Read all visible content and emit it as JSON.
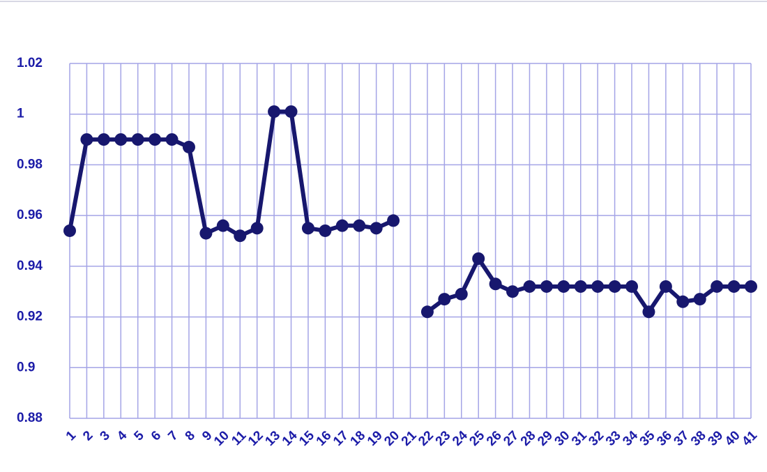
{
  "chart_data": {
    "type": "line",
    "categories": [
      "1",
      "2",
      "3",
      "4",
      "5",
      "6",
      "7",
      "8",
      "9",
      "10",
      "11",
      "12",
      "13",
      "14",
      "15",
      "16",
      "17",
      "18",
      "19",
      "20",
      "21",
      "22",
      "23",
      "24",
      "25",
      "26",
      "27",
      "28",
      "29",
      "30",
      "31",
      "32",
      "33",
      "34",
      "35",
      "36",
      "37",
      "38",
      "39",
      "40",
      "41"
    ],
    "series": [
      {
        "name": "series",
        "color": "#17176e",
        "values": [
          0.954,
          0.99,
          0.99,
          0.99,
          0.99,
          0.99,
          0.99,
          0.987,
          0.953,
          0.956,
          0.952,
          0.955,
          1.001,
          1.001,
          0.955,
          0.954,
          0.956,
          0.956,
          0.955,
          0.958,
          null,
          0.922,
          0.927,
          0.929,
          0.943,
          0.933,
          0.93,
          0.932,
          0.932,
          0.932,
          0.932,
          0.932,
          0.932,
          0.932,
          0.922,
          0.932,
          0.926,
          0.927,
          0.932,
          0.932,
          0.932
        ]
      }
    ],
    "ylim": [
      0.88,
      1.02
    ],
    "yticks": [
      0.88,
      0.9,
      0.92,
      0.94,
      0.96,
      0.98,
      1,
      1.02
    ],
    "grid": true,
    "grid_color": "#a4a4e6",
    "tick_label_color": "#1c1ca8"
  }
}
